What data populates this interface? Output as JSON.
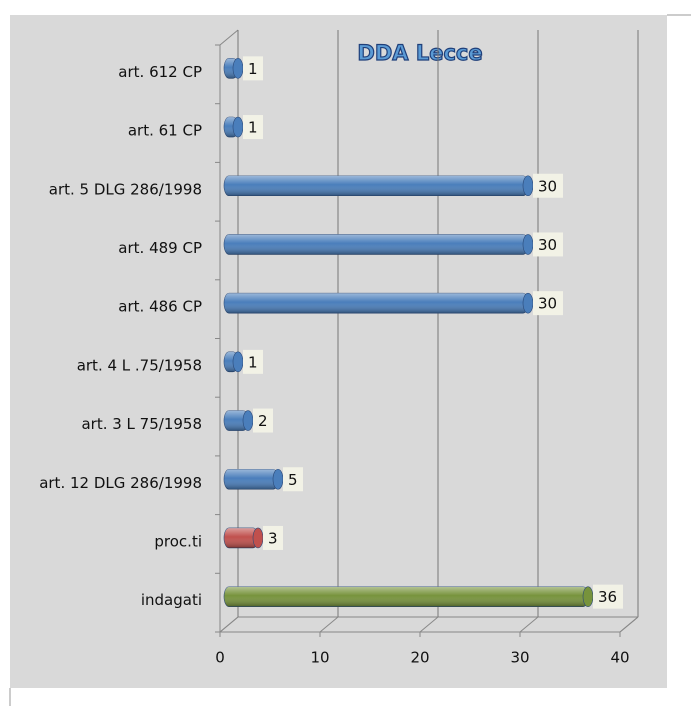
{
  "chart_data": {
    "type": "bar",
    "orientation": "horizontal",
    "title": "DDA Lecce",
    "categories": [
      "art. 612  CP",
      "art. 61 CP",
      "art. 5  DLG 286/1998",
      "art. 489  CP",
      "art. 486  CP",
      "art. 4 L .75/1958",
      "art. 3  L 75/1958",
      "art. 12  DLG 286/1998",
      "proc.ti",
      "indagati"
    ],
    "values": [
      1,
      1,
      30,
      30,
      30,
      1,
      2,
      5,
      3,
      36
    ],
    "colors": [
      "#4a7ebb",
      "#4a7ebb",
      "#4a7ebb",
      "#4a7ebb",
      "#4a7ebb",
      "#4a7ebb",
      "#4a7ebb",
      "#4a7ebb",
      "#c0504d",
      "#77933c"
    ],
    "xlim": [
      0,
      40
    ],
    "xticks": [
      0,
      10,
      20,
      30,
      40
    ],
    "grid": true
  }
}
